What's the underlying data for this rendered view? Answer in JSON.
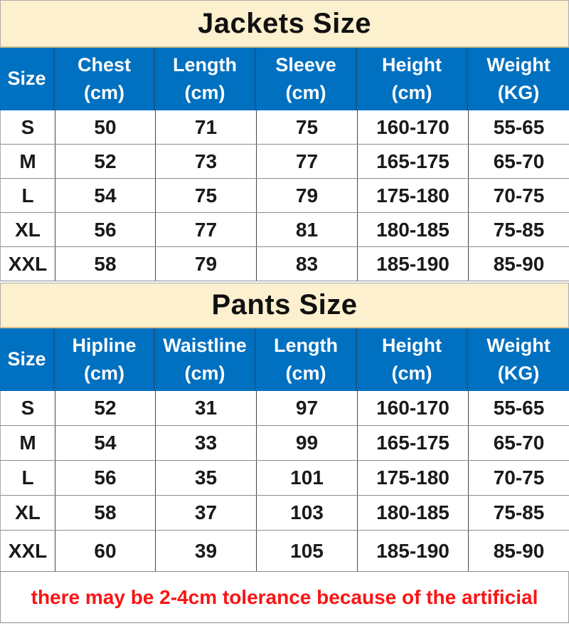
{
  "colors": {
    "banner_bg": "#FCF0CE",
    "header_bg": "#0070C0",
    "header_text": "#FFFFFF",
    "body_text": "#1A1A1A",
    "note_text": "#FA1414"
  },
  "jackets": {
    "title": "Jackets Size",
    "columns": [
      {
        "label": "Size",
        "unit": ""
      },
      {
        "label": "Chest",
        "unit": "(cm)"
      },
      {
        "label": "Length",
        "unit": "(cm)"
      },
      {
        "label": "Sleeve",
        "unit": "(cm)"
      },
      {
        "label": "Height",
        "unit": "(cm)"
      },
      {
        "label": "Weight",
        "unit": "(KG)"
      }
    ],
    "rows": [
      [
        "S",
        "50",
        "71",
        "75",
        "160-170",
        "55-65"
      ],
      [
        "M",
        "52",
        "73",
        "77",
        "165-175",
        "65-70"
      ],
      [
        "L",
        "54",
        "75",
        "79",
        "175-180",
        "70-75"
      ],
      [
        "XL",
        "56",
        "77",
        "81",
        "180-185",
        "75-85"
      ],
      [
        "XXL",
        "58",
        "79",
        "83",
        "185-190",
        "85-90"
      ]
    ]
  },
  "pants": {
    "title": "Pants Size",
    "columns": [
      {
        "label": "Size",
        "unit": ""
      },
      {
        "label": "Hipline",
        "unit": "(cm)"
      },
      {
        "label": "Waistline",
        "unit": "(cm)"
      },
      {
        "label": "Length",
        "unit": "(cm)"
      },
      {
        "label": "Height",
        "unit": "(cm)"
      },
      {
        "label": "Weight",
        "unit": "(KG)"
      }
    ],
    "rows": [
      [
        "S",
        "52",
        "31",
        "97",
        "160-170",
        "55-65"
      ],
      [
        "M",
        "54",
        "33",
        "99",
        "165-175",
        "65-70"
      ],
      [
        "L",
        "56",
        "35",
        "101",
        "175-180",
        "70-75"
      ],
      [
        "XL",
        "58",
        "37",
        "103",
        "180-185",
        "75-85"
      ],
      [
        "XXL",
        "60",
        "39",
        "105",
        "185-190",
        "85-90"
      ]
    ]
  },
  "note": "there may be 2-4cm tolerance because of the artificial"
}
